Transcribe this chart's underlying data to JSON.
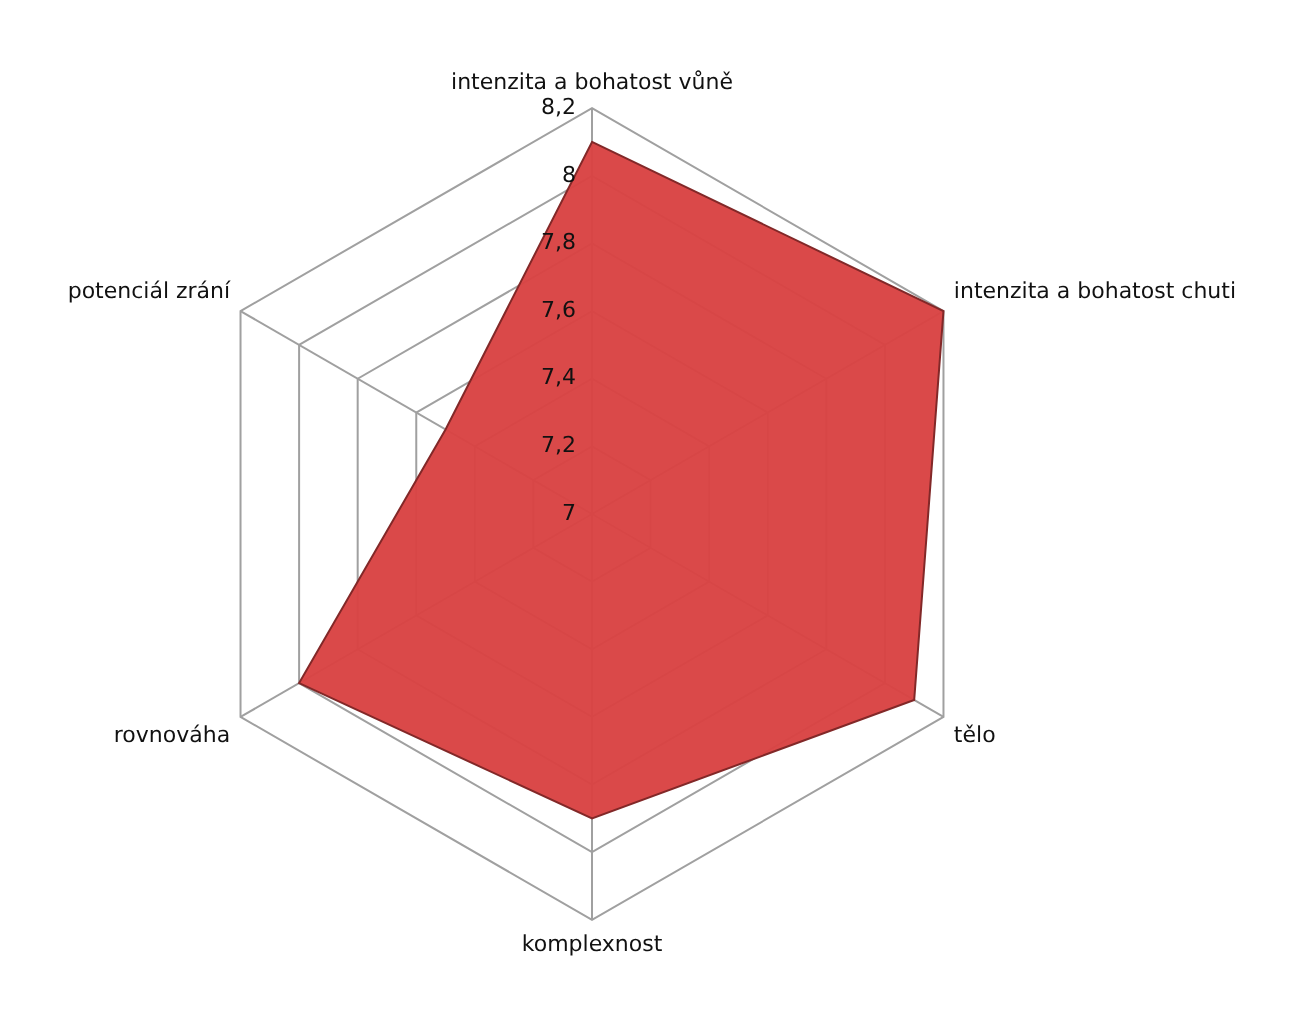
{
  "chart_data": {
    "type": "radar",
    "categories": [
      "intenzita a bohatost vůně",
      "intenzita a bohatost chuti",
      "tělo",
      "komplexnost",
      "rovnováha",
      "potenciál zrání"
    ],
    "series": [
      {
        "color": "#d94343",
        "values": [
          8.1,
          8.2,
          8.1,
          7.9,
          8.0,
          7.5
        ]
      }
    ],
    "ylim": [
      7,
      8.2
    ],
    "yticks": [
      7,
      {
        "value": 7.2,
        "label": "7,2"
      },
      {
        "value": 7.4,
        "label": "7,4"
      },
      {
        "value": 7.6,
        "label": "7,6"
      },
      {
        "value": 7.8,
        "label": "7,8"
      },
      8,
      {
        "value": 8.2,
        "label": "8,2"
      }
    ],
    "grid": true,
    "legend": false,
    "marker": "none"
  }
}
